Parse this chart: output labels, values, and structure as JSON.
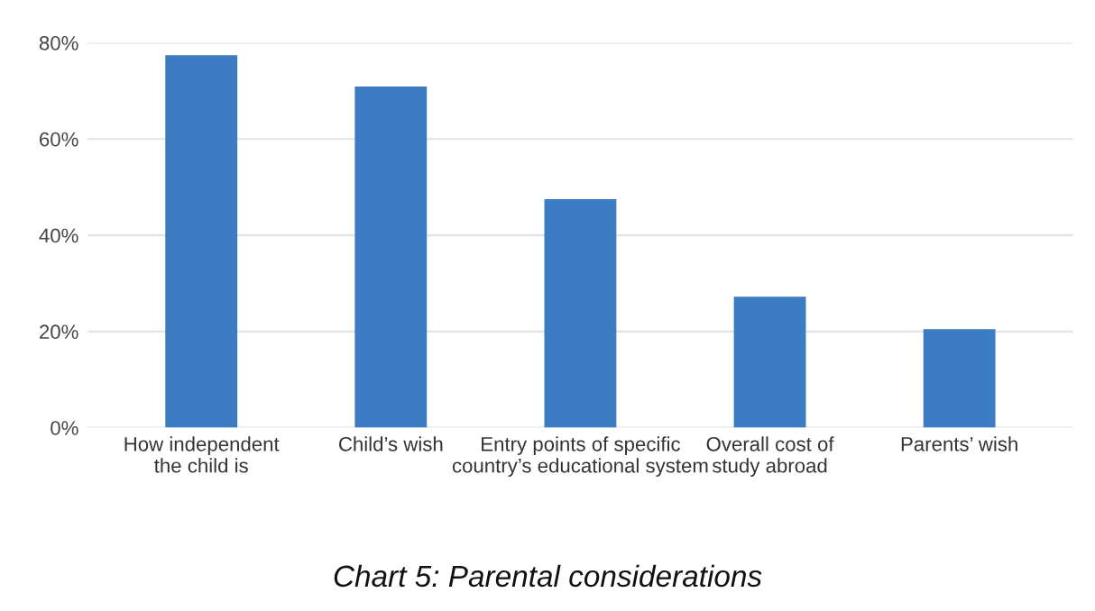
{
  "chart_data": {
    "type": "bar",
    "title": "Chart 5: Parental considerations",
    "categories": [
      "How independent\nthe child is",
      "Child’s wish",
      "Entry points of specific\ncountry’s educational system",
      "Overall cost of\nstudy abroad",
      "Parents’ wish"
    ],
    "values": [
      77.4,
      70.9,
      47.5,
      27.2,
      20.5
    ],
    "color": "#3c7cc2",
    "ylim": [
      0,
      80
    ],
    "yticks": [
      {
        "value": 0,
        "label": "0%"
      },
      {
        "value": 20,
        "label": "20%"
      },
      {
        "value": 40,
        "label": "40%"
      },
      {
        "value": 60,
        "label": "60%"
      },
      {
        "value": 80,
        "label": "80%"
      }
    ],
    "grid": "y"
  }
}
